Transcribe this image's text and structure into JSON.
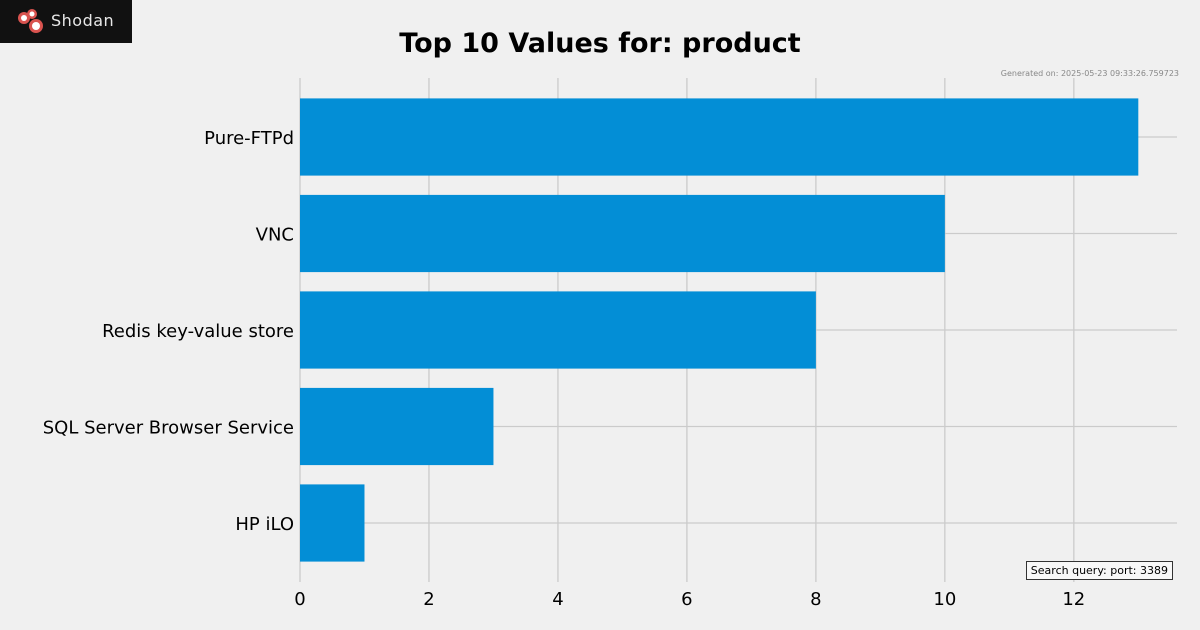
{
  "brand": {
    "name": "Shodan"
  },
  "colors": {
    "bar": "#038ed6",
    "grid": "#cbcbcb",
    "background": "#f0f0f0"
  },
  "footer": {
    "generated": "Generated on: 2025-05-23 09:33:26.759723",
    "query": "Search query: port: 3389"
  },
  "chart_data": {
    "type": "bar",
    "orientation": "horizontal",
    "title": "Top 10 Values for: product",
    "categories": [
      "Pure-FTPd",
      "VNC",
      "Redis key-value store",
      "SQL Server Browser Service",
      "HP iLO"
    ],
    "values": [
      13,
      10,
      8,
      3,
      1
    ],
    "xlim": [
      0,
      13.6
    ],
    "xticks": [
      0,
      2,
      4,
      6,
      8,
      10,
      12
    ],
    "xlabel": "",
    "ylabel": "",
    "grid": true
  }
}
